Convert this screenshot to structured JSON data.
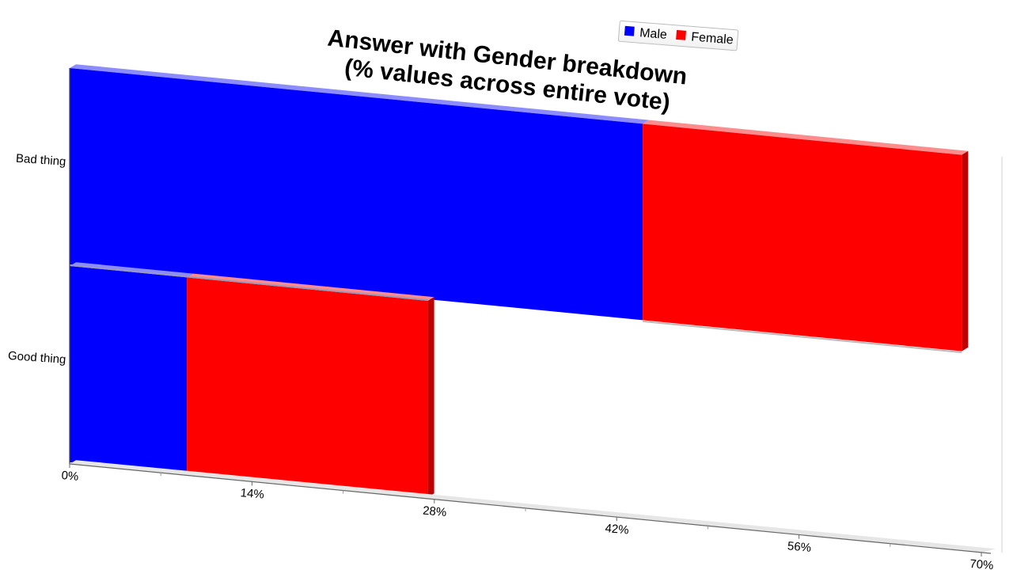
{
  "chart_data": {
    "type": "bar",
    "orientation": "horizontal",
    "stacked": true,
    "perspective_3d": true,
    "title": "Answer with Gender breakdown",
    "subtitle": "(% values across entire vote)",
    "categories": [
      "Bad thing",
      "Good thing"
    ],
    "series": [
      {
        "name": "Male",
        "color": "#0000ff",
        "values": [
          44,
          9
        ]
      },
      {
        "name": "Female",
        "color": "#ff0000",
        "values": [
          24.5,
          18.5
        ]
      }
    ],
    "x_ticks": [
      "0%",
      "14%",
      "28%",
      "42%",
      "56%",
      "70%"
    ],
    "xlim": [
      0,
      70
    ],
    "grid": false,
    "legend_position": "top"
  }
}
